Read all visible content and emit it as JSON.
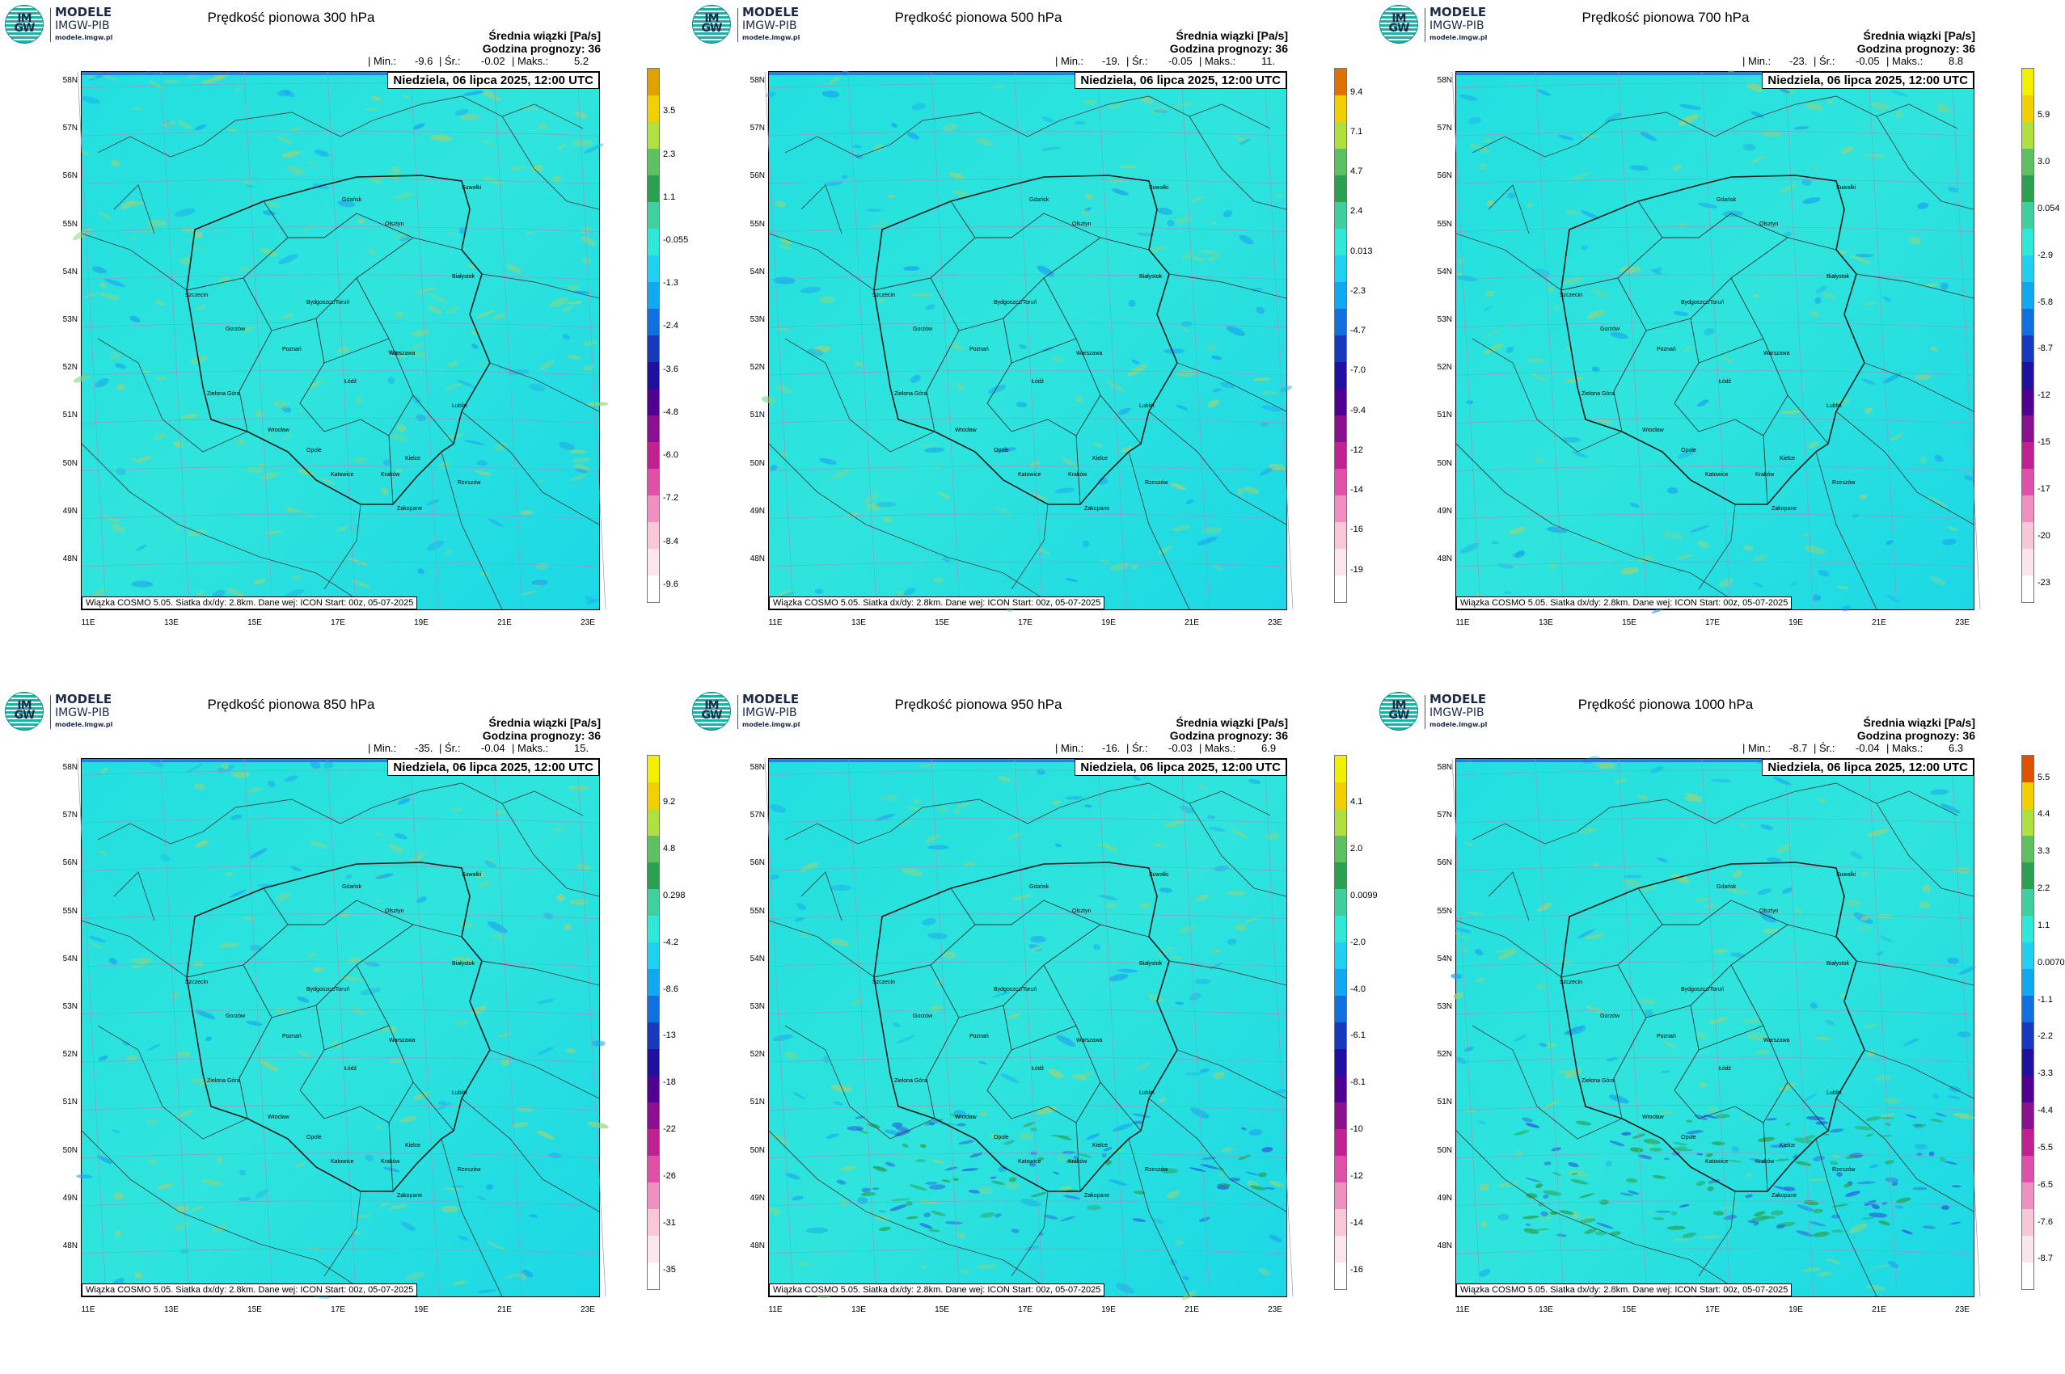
{
  "logo": {
    "disc_text": "IM\nGW",
    "line1": "MODELE",
    "line2": "IMGW-PIB",
    "line3": "modele.imgw.pl"
  },
  "common": {
    "subtitle": "Średnia wiązki [Pa/s]",
    "forecast_hour": "Godzina prognozy: 36",
    "min_label": "| Min.:",
    "mean_label": "| Śr.:",
    "max_label": "| Maks.:",
    "date": "Niedziela, 06 lipca 2025, 12:00 UTC",
    "footer": "Wiązka COSMO 5.05. Siatka dx/dy: 2.8km. Dane wej: ICON Start: 00z, 05-07-2025",
    "lat_labels": [
      "58N",
      "57N",
      "56N",
      "55N",
      "54N",
      "53N",
      "52N",
      "51N",
      "50N",
      "49N",
      "48N"
    ],
    "lon_labels": [
      "11E",
      "13E",
      "15E",
      "17E",
      "19E",
      "21E",
      "23E"
    ],
    "cities": [
      "Gdańsk",
      "Olsztyn",
      "Suwałki",
      "Szczecin",
      "Białystok",
      "Bydgoszcz/Toruń",
      "Gorzów",
      "Poznań",
      "Warszawa",
      "Zielona Góra",
      "Łódź",
      "Lublin",
      "Wrocław",
      "Opole",
      "Kielce",
      "Katowice",
      "Kraków",
      "Rzeszów",
      "Zakopane"
    ]
  },
  "panels": [
    {
      "title": "Prędkość pionowa 300 hPa",
      "min": "-9.6",
      "mean": "-0.02",
      "max": "5.2",
      "colorbar": [
        "3.5",
        "2.3",
        "1.1",
        "-0.055",
        "-1.3",
        "-2.4",
        "-3.6",
        "-4.8",
        "-6.0",
        "-7.2",
        "-8.4",
        "-9.6"
      ],
      "top_color": "#e0a000"
    },
    {
      "title": "Prędkość pionowa 500 hPa",
      "min": "-19.",
      "mean": "-0.05",
      "max": "11.",
      "colorbar": [
        "9.4",
        "7.1",
        "4.7",
        "2.4",
        "0.013",
        "-2.3",
        "-4.7",
        "-7.0",
        "-9.4",
        "-12",
        "-14",
        "-16",
        "-19"
      ],
      "top_color": "#e07000"
    },
    {
      "title": "Prędkość pionowa 700 hPa",
      "min": "-23.",
      "mean": "-0.05",
      "max": "8.8",
      "colorbar": [
        "5.9",
        "3.0",
        "0.054",
        "-2.9",
        "-5.8",
        "-8.7",
        "-12",
        "-15",
        "-17",
        "-20",
        "-23"
      ],
      "top_color": "#f0f000"
    },
    {
      "title": "Prędkość pionowa 850 hPa",
      "min": "-35.",
      "mean": "-0.04",
      "max": "15.",
      "colorbar": [
        "9.2",
        "4.8",
        "0.298",
        "-4.2",
        "-8.6",
        "-13",
        "-18",
        "-22",
        "-26",
        "-31",
        "-35"
      ],
      "top_color": "#f0f000"
    },
    {
      "title": "Prędkość pionowa 950 hPa",
      "min": "-16.",
      "mean": "-0.03",
      "max": "6.9",
      "colorbar": [
        "4.1",
        "2.0",
        "0.0099",
        "-2.0",
        "-4.0",
        "-6.1",
        "-8.1",
        "-10",
        "-12",
        "-14",
        "-16"
      ],
      "top_color": "#f0f000"
    },
    {
      "title": "Prędkość pionowa 1000 hPa",
      "min": "-8.7",
      "mean": "-0.04",
      "max": "6.3",
      "colorbar": [
        "5.5",
        "4.4",
        "3.3",
        "2.2",
        "1.1",
        "0.0070",
        "-1.1",
        "-2.2",
        "-3.3",
        "-4.4",
        "-5.5",
        "-6.5",
        "-7.6",
        "-8.7"
      ],
      "top_color": "#e05000"
    }
  ]
}
